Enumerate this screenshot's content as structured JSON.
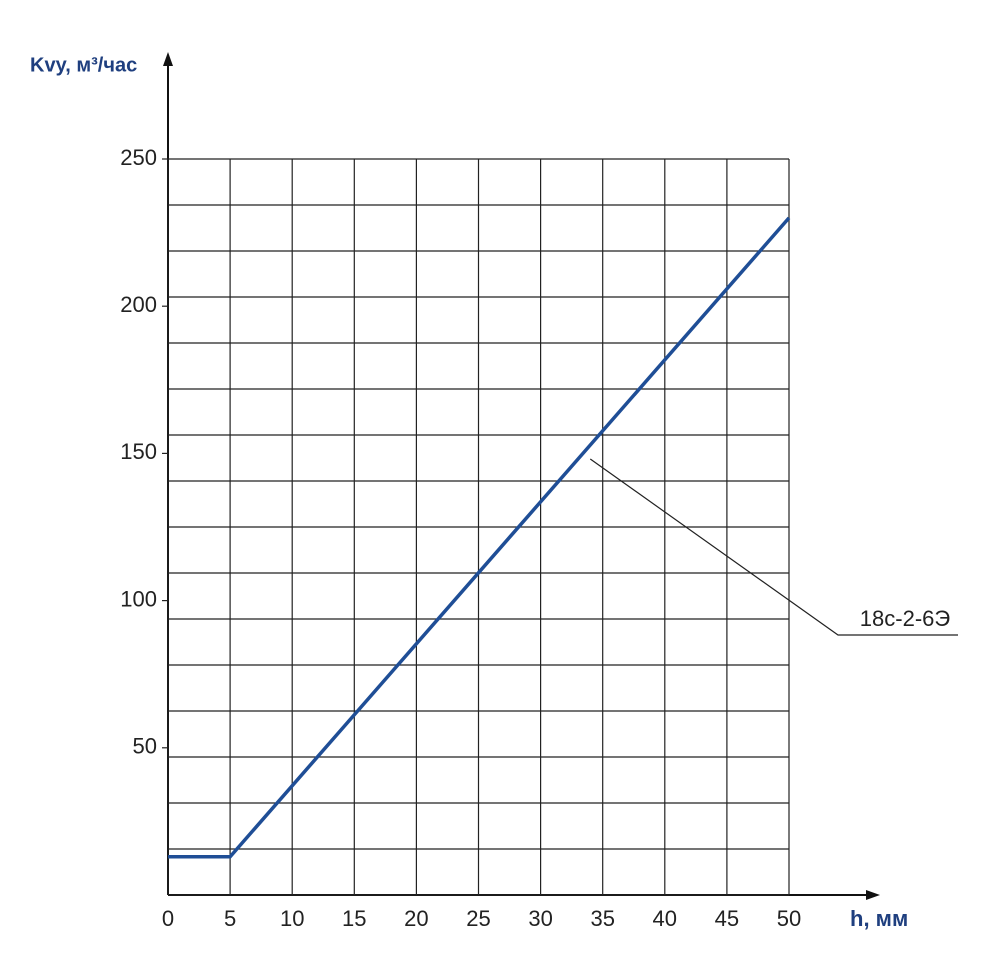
{
  "chart_data": {
    "type": "line",
    "y_label": "Kvy, м³/час",
    "x_label": "h, мм",
    "x": [
      0,
      5,
      50
    ],
    "series": [
      {
        "name": "18с-2-6Э",
        "color": "#1f4e96",
        "values": [
          13,
          13,
          230
        ]
      }
    ],
    "xlim": [
      0,
      50
    ],
    "xticks": [
      0,
      5,
      10,
      15,
      20,
      25,
      30,
      35,
      40,
      45,
      50
    ],
    "ylim": [
      0,
      250
    ],
    "yticks": [
      50,
      100,
      150,
      200,
      250
    ],
    "grid": true
  }
}
